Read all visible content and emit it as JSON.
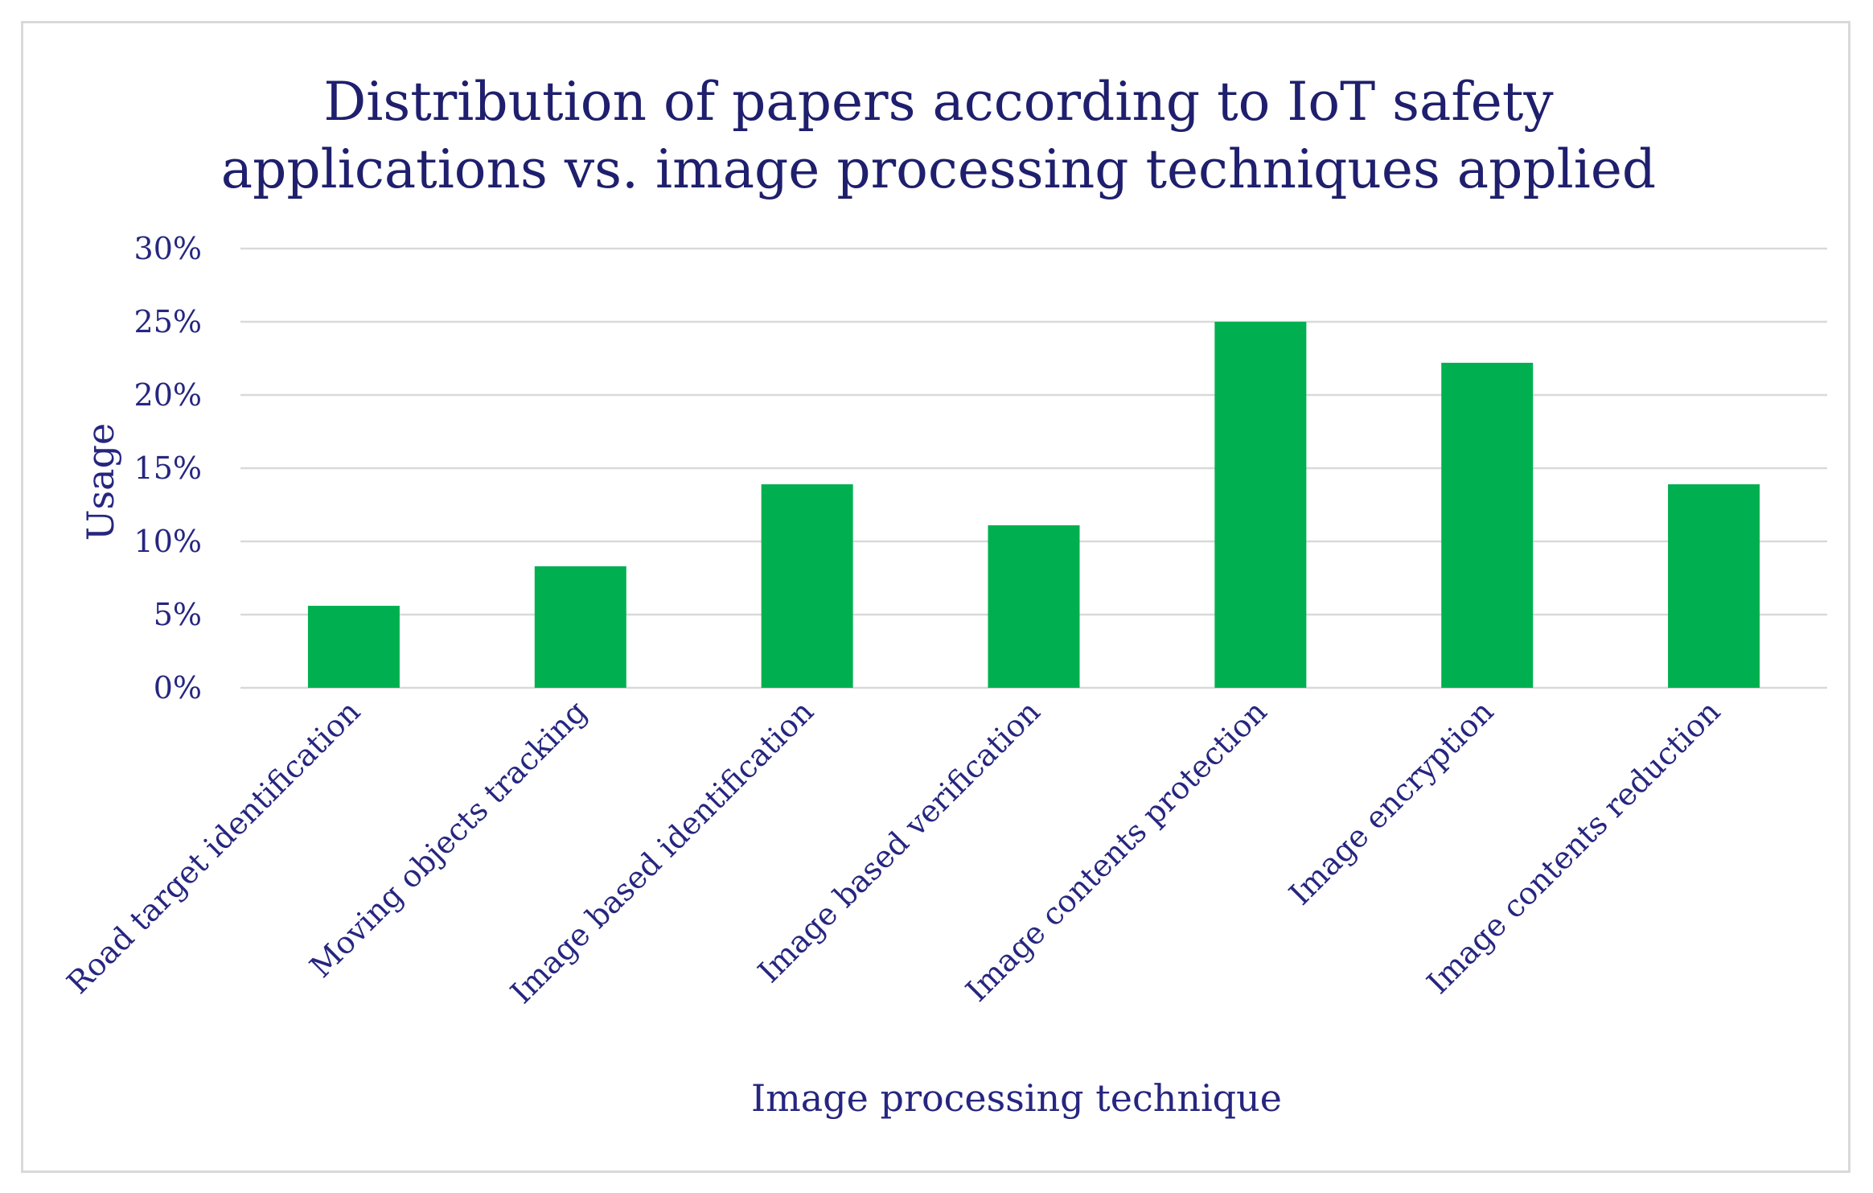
{
  "chart_data": {
    "type": "bar",
    "title": "Distribution of papers according to IoT safety applications vs. image processing techniques applied",
    "title_lines": [
      "Distribution of papers according to IoT safety",
      "applications vs. image processing techniques applied"
    ],
    "xlabel": "Image processing technique",
    "ylabel": "Usage",
    "categories": [
      "Road target identification",
      "Moving objects tracking",
      "Image based identification",
      "Image based verification",
      "Image contents protection",
      "Image encryption",
      "Image contents reduction"
    ],
    "values": [
      5.6,
      8.3,
      13.9,
      11.1,
      25.0,
      22.2,
      13.9
    ],
    "unit": "%",
    "ylim": [
      0,
      30
    ],
    "yticks": [
      0,
      5,
      10,
      15,
      20,
      25,
      30
    ],
    "ytick_labels": [
      "0%",
      "5%",
      "10%",
      "15%",
      "20%",
      "25%",
      "30%"
    ],
    "grid": true,
    "legend": "none",
    "bar_color": "#00b050",
    "text_color": "#262680"
  }
}
